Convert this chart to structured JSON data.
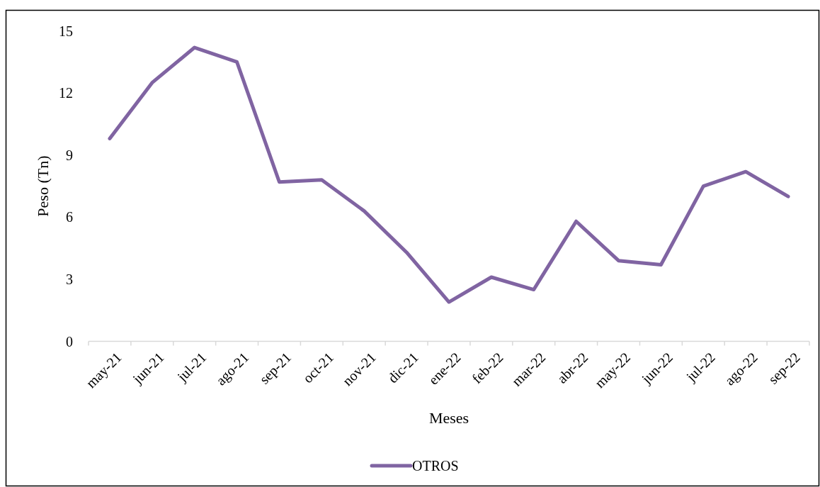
{
  "chart_data": {
    "type": "line",
    "xlabel": "Meses",
    "ylabel": "Peso (Tn)",
    "categories": [
      "may-21",
      "jun-21",
      "jul-21",
      "ago-21",
      "sep-21",
      "oct-21",
      "nov-21",
      "dic-21",
      "ene-22",
      "feb-22",
      "mar-22",
      "abr-22",
      "may-22",
      "jun-22",
      "jul-22",
      "ago-22",
      "sep-22"
    ],
    "series": [
      {
        "name": "OTROS",
        "color": "#8064a2",
        "values": [
          9.8,
          12.5,
          14.2,
          13.5,
          7.7,
          7.8,
          6.3,
          4.3,
          1.9,
          3.1,
          2.5,
          5.8,
          3.9,
          3.7,
          7.5,
          8.2,
          7.0
        ]
      }
    ],
    "ylim": [
      0,
      15
    ],
    "yticks": [
      0,
      3,
      6,
      9,
      12,
      15
    ],
    "legend": "bottom"
  }
}
